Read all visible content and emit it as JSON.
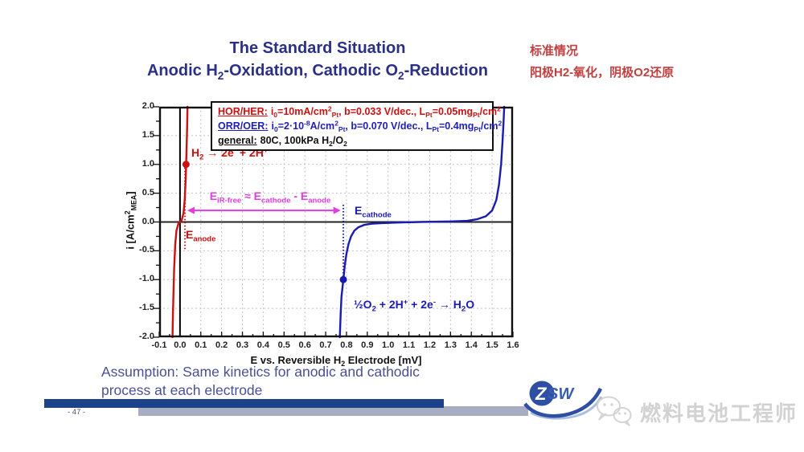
{
  "title": {
    "line1": "The Standard Situation",
    "line2": "Anodic H_{2}-Oxidation, Cathodic O_{2}-Reduction"
  },
  "chinese_note": {
    "line1": "标准情况",
    "line2": "阳极H2-氧化，阴极O2还原"
  },
  "legend": {
    "lines": [
      {
        "label": "HOR/HER:",
        "text": "i_{0}=10mA/cm^{2}_{Pt},  b=0.033 V/dec., L_{Pt}=0.05mg_{Pt}/cm^{2}"
      },
      {
        "label": "ORR/OER:",
        "text": "i_{0}=2·10^{-8}A/cm^{2}_{Pt}, b=0.070 V/dec., L_{Pt}=0.4mg_{Pt}/cm^{2}"
      },
      {
        "label": "general:",
        "text": "80C, 100kPa H_{2}/O_{2}"
      }
    ]
  },
  "chart_data": {
    "type": "line",
    "xlabel": "E vs. Reversible H_{2} Electrode [mV]",
    "ylabel": "i [A/cm^{2}_{MEA}]",
    "xlim": [
      -0.1,
      1.6
    ],
    "ylim": [
      -2.0,
      2.0
    ],
    "xtick_labels": [
      "-0.1",
      "0.0",
      "0.1",
      "0.2",
      "0.3",
      "0.4",
      "0.5",
      "0.6",
      "0.7",
      "0.8",
      "0.9",
      "1.0",
      "1.1",
      "1.2",
      "1.3",
      "1.4",
      "1.5",
      "1.6"
    ],
    "ytick_labels": [
      "2.0",
      "1.5",
      "1.0",
      "0.5",
      "0.0",
      "-0.5",
      "-1.0",
      "-1.5",
      "-2.0"
    ],
    "x_minor_step": 0.05,
    "y_minor_step": 0.25,
    "grid_x": [
      0.1,
      0.2,
      0.3,
      0.4,
      0.5,
      0.6,
      0.7,
      0.8,
      0.9,
      1.0,
      1.1,
      1.2,
      1.3,
      1.4,
      1.5
    ],
    "grid_y": [
      -1.5,
      -1.0,
      -0.5,
      0.5,
      1.0,
      1.5
    ],
    "grid_style": "dashed",
    "series": [
      {
        "name": "HOR/HER anode branch (H2 oxidation)",
        "color": "#cc1111",
        "points": [
          [
            -0.036,
            -2.0
          ],
          [
            -0.034,
            -1.6
          ],
          [
            -0.031,
            -1.2
          ],
          [
            -0.028,
            -0.8
          ],
          [
            -0.023,
            -0.4
          ],
          [
            -0.017,
            -0.15
          ],
          [
            -0.008,
            -0.03
          ],
          [
            0.0,
            0.0
          ],
          [
            0.008,
            0.03
          ],
          [
            0.017,
            0.15
          ],
          [
            0.023,
            0.4
          ],
          [
            0.028,
            0.8
          ],
          [
            0.031,
            1.2
          ],
          [
            0.034,
            1.6
          ],
          [
            0.036,
            2.0
          ]
        ]
      },
      {
        "name": "ORR/OER cathode branch (O2 reduction / evolution)",
        "color": "#1b1bb0",
        "points": [
          [
            0.768,
            -2.0
          ],
          [
            0.772,
            -1.6
          ],
          [
            0.776,
            -1.3
          ],
          [
            0.785,
            -1.0
          ],
          [
            0.792,
            -0.75
          ],
          [
            0.8,
            -0.55
          ],
          [
            0.81,
            -0.38
          ],
          [
            0.822,
            -0.25
          ],
          [
            0.838,
            -0.15
          ],
          [
            0.858,
            -0.09
          ],
          [
            0.885,
            -0.05
          ],
          [
            0.92,
            -0.03
          ],
          [
            0.97,
            -0.02
          ],
          [
            1.05,
            -0.01
          ],
          [
            1.15,
            0.0
          ],
          [
            1.3,
            0.01
          ],
          [
            1.38,
            0.02
          ],
          [
            1.43,
            0.05
          ],
          [
            1.47,
            0.1
          ],
          [
            1.5,
            0.2
          ],
          [
            1.52,
            0.38
          ],
          [
            1.533,
            0.65
          ],
          [
            1.543,
            1.0
          ],
          [
            1.55,
            1.4
          ],
          [
            1.555,
            1.75
          ],
          [
            1.558,
            2.0
          ]
        ]
      }
    ],
    "markers": [
      {
        "x": 0.029,
        "y": 1.0,
        "color": "#cc1111"
      },
      {
        "x": 0.785,
        "y": -1.0,
        "color": "#1b1bb0"
      }
    ],
    "dotted_lines": [
      {
        "x": 0.024,
        "y_top": 1.0,
        "y_bottom": -0.48,
        "color": "#cc1111"
      },
      {
        "x": 0.785,
        "y_top": 0.3,
        "y_bottom": -1.0,
        "color": "#1b1bb0"
      }
    ],
    "potential_arrow": {
      "y": 0.2,
      "x_start": 0.035,
      "x_end": 0.772,
      "color": "#e03ce0",
      "label": "E_{iR-free} ≈ E_{cathode} - E_{anode}"
    },
    "annotations": {
      "anode_reaction": "H_{2} → 2e^{-} + 2H^{+}",
      "cathode_reaction": "½O_{2} + 2H^{+} + 2e^{-} → H_{2}O",
      "e_anode": "E_{anode}",
      "e_cathode": "E_{cathode}"
    }
  },
  "assumption": {
    "line1": "Assumption: Same kinetics for anodic and cathodic",
    "line2": "process at each electrode"
  },
  "footer": {
    "page_number": "- 47 -"
  },
  "logo": {
    "z": "Z",
    "sw": "SW"
  },
  "watermark": {
    "text": "燃料电池工程师"
  },
  "colors": {
    "title": "#2b2f85",
    "red": "#cc1111",
    "blue": "#1b1bb0",
    "magenta": "#e03ce0",
    "chinese_note": "#c24040",
    "assumption": "#4b4f93",
    "footer_bar_blue": "#1d4289",
    "footer_bar_gray": "#a9adc4",
    "watermark": "#d2d2d2"
  }
}
